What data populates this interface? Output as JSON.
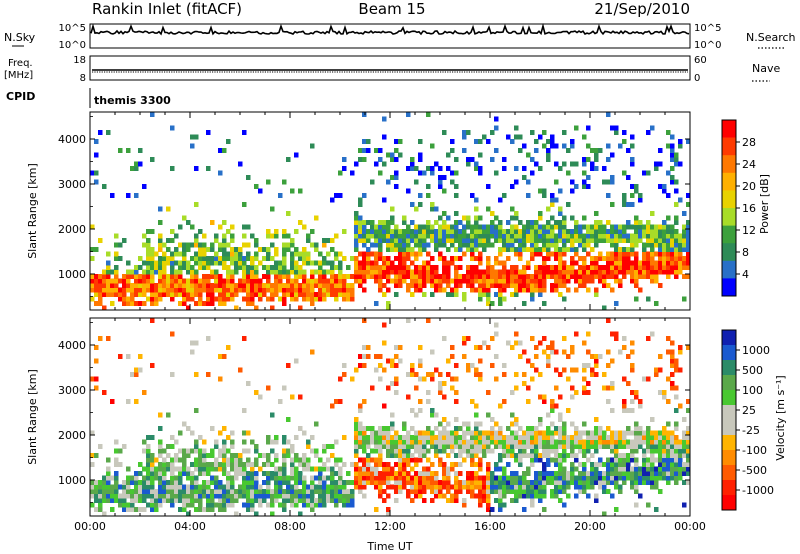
{
  "header": {
    "station": "Rankin Inlet (fitACF)",
    "beam": "Beam 15",
    "date": "21/Sep/2010"
  },
  "strips": {
    "nsky_label": "N.Sky",
    "nsky_ticks": [
      "10^5",
      "10^0"
    ],
    "nsearch_label": "N.Search",
    "nsearch_ticks": [
      "10^5",
      "10^0"
    ],
    "freq_label": "Freq.",
    "freq_unit": "[MHz]",
    "freq_ticks": [
      "18",
      "8"
    ],
    "nave_label": "Nave",
    "nave_ticks": [
      "60",
      "0"
    ],
    "cpid_label": "CPID",
    "cpid_value": "themis 3300"
  },
  "chart_data": [
    {
      "type": "heatmap",
      "name": "power",
      "ylabel": "Slant Range [km]",
      "xlabel": "",
      "xlim": [
        0,
        24
      ],
      "ylim": [
        200,
        4600
      ],
      "yticks": [
        1000,
        2000,
        3000,
        4000
      ],
      "colorbar": {
        "label": "Power [dB]",
        "ticks": [
          "28",
          "24",
          "20",
          "16",
          "12",
          "8",
          "4"
        ],
        "colors": [
          "#ff0000",
          "#ff3a00",
          "#ff7800",
          "#ffb000",
          "#e8d200",
          "#a8dc28",
          "#3ca03c",
          "#2e8b57",
          "#2870c8",
          "#0000ff"
        ]
      }
    },
    {
      "type": "heatmap",
      "name": "velocity",
      "ylabel": "Slant Range [km]",
      "xlabel": "Time UT",
      "xlim": [
        0,
        24
      ],
      "ylim": [
        200,
        4600
      ],
      "yticks": [
        1000,
        2000,
        3000,
        4000
      ],
      "xticks": [
        "00:00",
        "04:00",
        "08:00",
        "12:00",
        "16:00",
        "20:00",
        "00:00"
      ],
      "colorbar": {
        "label": "Velocity [m s⁻¹]",
        "ticks": [
          "1000",
          "500",
          "100",
          "25",
          "-25",
          "-100",
          "-500",
          "-1000"
        ],
        "colors": [
          "#1020b0",
          "#1a5ad0",
          "#2b8b68",
          "#5aa84a",
          "#48c830",
          "#c8c8bc",
          "#c8c8bc",
          "#ffb400",
          "#ff8c00",
          "#ff5a00",
          "#ff2000",
          "#ff0000"
        ]
      }
    }
  ]
}
